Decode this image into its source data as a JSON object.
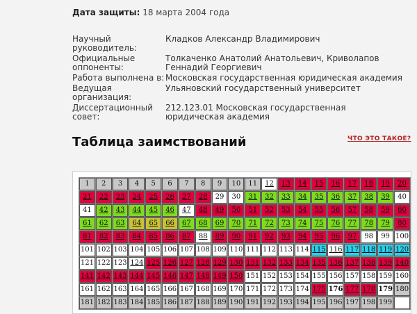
{
  "defense": {
    "label": "Дата защиты:",
    "value": "18 марта 2004 года"
  },
  "info": [
    {
      "key": "Научный руководитель:",
      "value": "Кладков Александр Владимирович"
    },
    {
      "key": "Официальные оппоненты:",
      "value": "Толкаченко Анатолий Анатольевич, Криволапов Геннадий Георгиевич"
    },
    {
      "key": "Работа выполнена в:",
      "value": "Московская государственная юридическая академия"
    },
    {
      "key": "Ведущая организация:",
      "value": "Ульяновский государственный университет"
    },
    {
      "key": "Диссертационный совет:",
      "value": "212.123.01 Московская государственная юридическая академия"
    }
  ],
  "section_title": "Таблица заимствований",
  "what_is_link": "ЧТО ЭТО ТАКОЕ?",
  "colors": {
    "red": "#e0003c",
    "green": "#7edb1f",
    "yellow": "#c9c234",
    "cyan": "#2ccfe9",
    "gray": "#c8c8c8",
    "white": "#ffffff"
  },
  "grid": {
    "rows": [
      [
        "g",
        "g",
        "g",
        "g",
        "g",
        "g",
        "g",
        "g",
        "g",
        "g",
        "g",
        "wl",
        "r",
        "r",
        "r",
        "r",
        "r",
        "r",
        "r",
        "r"
      ],
      [
        "r",
        "r",
        "r",
        "r",
        "r",
        "r",
        "r",
        "r",
        "w",
        "w",
        "gr",
        "gr",
        "gr",
        "gr",
        "gr",
        "gr",
        "gr",
        "gr",
        "gr",
        "w"
      ],
      [
        "w",
        "gr",
        "gr",
        "gr",
        "gr",
        "gr",
        "wl",
        "r",
        "r",
        "r",
        "r",
        "r",
        "r",
        "r",
        "r",
        "r",
        "r",
        "r",
        "r",
        "r"
      ],
      [
        "gr",
        "gr",
        "gr",
        "y",
        "y",
        "y",
        "gr",
        "gr",
        "gr",
        "gr",
        "gr",
        "gr",
        "gr",
        "gr",
        "gr",
        "gr",
        "gr",
        "gr",
        "gr",
        "r"
      ],
      [
        "r",
        "r",
        "r",
        "r",
        "r",
        "r",
        "r",
        "wl",
        "r",
        "r",
        "r",
        "r",
        "r",
        "r",
        "r",
        "r",
        "r",
        "w",
        "w",
        "w"
      ],
      [
        "w",
        "w",
        "w",
        "w",
        "w",
        "w",
        "w",
        "w",
        "w",
        "w",
        "w",
        "w",
        "w",
        "w",
        "c",
        "wl",
        "c",
        "c",
        "c",
        "c"
      ],
      [
        "w",
        "w",
        "w",
        "wl",
        "r",
        "r",
        "r",
        "r",
        "r",
        "r",
        "r",
        "r",
        "r",
        "r",
        "r",
        "r",
        "r",
        "r",
        "r",
        "r"
      ],
      [
        "r",
        "r",
        "r",
        "r",
        "r",
        "r",
        "r",
        "r",
        "r",
        "r",
        "w",
        "w",
        "w",
        "w",
        "w",
        "w",
        "w",
        "w",
        "w",
        "w"
      ],
      [
        "w",
        "w",
        "w",
        "w",
        "w",
        "w",
        "w",
        "w",
        "w",
        "w",
        "w",
        "w",
        "w",
        "w",
        "r",
        "bd",
        "r",
        "r",
        "bd",
        "g"
      ],
      [
        "g",
        "g",
        "g",
        "g",
        "g",
        "g",
        "g",
        "g",
        "g",
        "g",
        "g",
        "g",
        "g",
        "g",
        "g",
        "g",
        "g",
        "g",
        "g",
        "blank"
      ]
    ]
  }
}
